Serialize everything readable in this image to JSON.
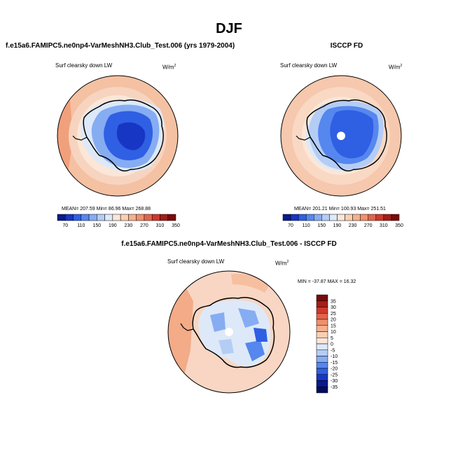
{
  "title": "DJF",
  "panels": [
    {
      "title": "f.e15a6.FAMIPC5.ne0np4-VarMeshNH3.Club_Test.006 (yrs 1979-2004)",
      "variable": "Surf clearsky down LW",
      "units": "W/m",
      "units_sup": "2",
      "stats": "MEAN= 207.59  Min=  86.96  Max= 268.88"
    },
    {
      "title": "ISCCP FD",
      "variable": "Surf clearsky down LW",
      "units": "W/m",
      "units_sup": "2",
      "stats": "MEAN= 201.21  Min= 100.93  Max= 251.51"
    },
    {
      "title": "f.e15a6.FAMIPC5.ne0np4-VarMeshNH3.Club_Test.006 - ISCCP FD",
      "variable": "Surf clearsky down LW",
      "units": "W/m",
      "units_sup": "2",
      "stats": "MIN = -37.87 MAX =  16.32"
    }
  ],
  "colorbar_abs": {
    "labels": [
      "70",
      "110",
      "150",
      "190",
      "230",
      "270",
      "310",
      "350"
    ],
    "colors": [
      "#0b1a8c",
      "#1736c4",
      "#2f5fe3",
      "#5687ef",
      "#86acf2",
      "#b4cdf5",
      "#dde9f8",
      "#fbe6d8",
      "#f9cfb2",
      "#f6b08d",
      "#f18f6b",
      "#e4634a",
      "#cc3a2c",
      "#a51d17",
      "#7a0a0a"
    ]
  },
  "colorbar_diff": {
    "labels": [
      "35",
      "30",
      "25",
      "20",
      "15",
      "10",
      "5",
      "0",
      "-5",
      "-10",
      "-15",
      "-20",
      "-25",
      "-30",
      "-35"
    ],
    "colors": [
      "#7a0a0a",
      "#a51d17",
      "#cc3a2c",
      "#e4634a",
      "#f18f6b",
      "#f6b08d",
      "#f9cfb2",
      "#fbe6d8",
      "#dde9f8",
      "#b4cdf5",
      "#86acf2",
      "#5687ef",
      "#2f5fe3",
      "#1736c4",
      "#0b1a8c",
      "#050d5a"
    ]
  },
  "colors": {
    "outer_ocean": "#f5c1a3",
    "warm_ring": "#f7d4bf",
    "pale_ring": "#fbe6d8",
    "diff_background": "#f8d6c3",
    "diff_warm": "#f3ab88",
    "coast": "#000000"
  }
}
